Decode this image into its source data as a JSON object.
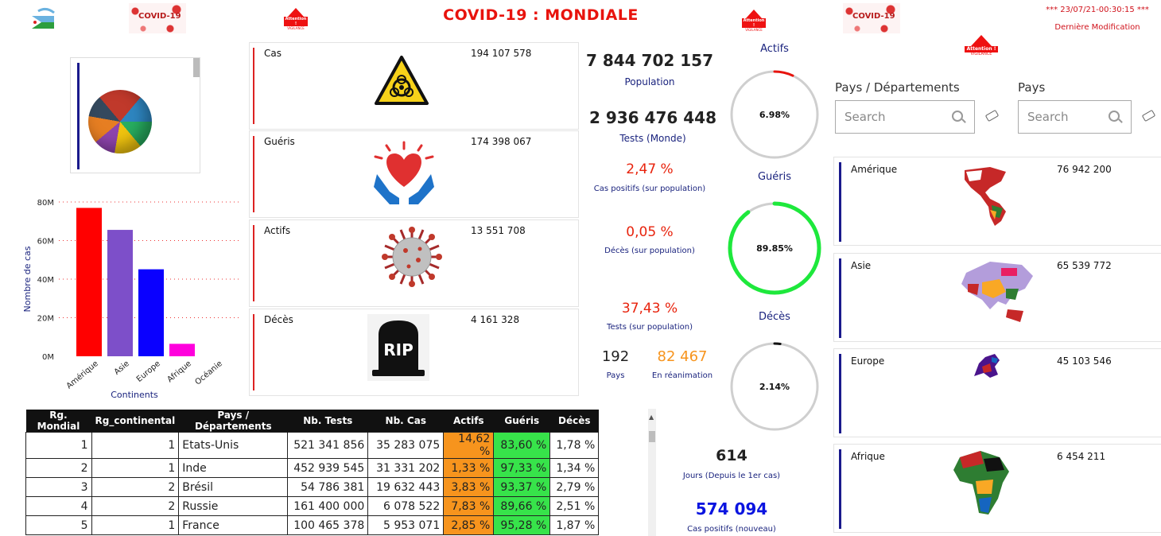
{
  "header": {
    "title": "COVID-19 : MONDIALE",
    "covid_banner_label": "COVID-19",
    "vigilance_label": "Attention !",
    "vigilance_sub": "VIGILANCE",
    "timestamp": "***  23/07/21-00:30:15  ***",
    "timestamp_label": "Dernière Modification"
  },
  "stats_cards": [
    {
      "label": "Cas",
      "value": "194 107 578",
      "icon": "biohazard-icon"
    },
    {
      "label": "Guéris",
      "value": "174 398 067",
      "icon": "heart-hands-icon"
    },
    {
      "label": "Actifs",
      "value": "13 551 708",
      "icon": "virus-icon"
    },
    {
      "label": "Décès",
      "value": "4 161 328",
      "icon": "tombstone-icon"
    }
  ],
  "summary": {
    "population_value": "7 844 702 157",
    "population_label": "Population",
    "tests_value": "2 936 476 448",
    "tests_label": "Tests (Monde)",
    "cas_positifs_pct": "2,47 %",
    "cas_positifs_label": "Cas positifs (sur population)",
    "deces_pct": "0,05 %",
    "deces_label": "Décès (sur population)",
    "tests_pct": "37,43 %",
    "tests_pct_label": "Tests (sur population)",
    "pays_value": "192",
    "pays_label": "Pays",
    "reanimation_value": "82 467",
    "reanimation_label": "En réanimation",
    "jours_value": "614",
    "jours_label": "Jours (Depuis le 1er cas)",
    "nouveaux_value": "574 094",
    "nouveaux_label": "Cas positifs (nouveau)"
  },
  "gauges": [
    {
      "title": "Actifs",
      "value_text": "6.98%",
      "fraction": 0.0698,
      "color": "#e8130d"
    },
    {
      "title": "Guéris",
      "value_text": "89.85%",
      "fraction": 0.8985,
      "color": "#1ee83c"
    },
    {
      "title": "Décès",
      "value_text": "2.14%",
      "fraction": 0.0214,
      "color": "#111111"
    }
  ],
  "slicers": {
    "pays_departements_title": "Pays / Départements",
    "pays_title": "Pays",
    "search_placeholder": "Search"
  },
  "continents": [
    {
      "label": "Amérique",
      "value": "76 942 200"
    },
    {
      "label": "Asie",
      "value": "65 539 772"
    },
    {
      "label": "Europe",
      "value": "45 103 546"
    },
    {
      "label": "Afrique",
      "value": "6 454 211"
    }
  ],
  "chart_data": {
    "type": "bar",
    "categories": [
      "Amérique",
      "Asie",
      "Europe",
      "Afrique",
      "Océanie"
    ],
    "values": [
      76942200,
      65539772,
      45103546,
      6454211,
      0
    ],
    "colors": [
      "#ff0000",
      "#7d4fc9",
      "#0a00ff",
      "#ff00dd",
      "#cccccc"
    ],
    "title": "",
    "xlabel": "Continents",
    "ylabel": "Nombre de cas",
    "ylim": [
      0,
      80000000
    ],
    "yticks": [
      "0M",
      "20M",
      "40M",
      "60M",
      "80M"
    ],
    "grid": true
  },
  "table": {
    "headers": [
      "Rg. Mondial",
      "Rg_continental",
      "Pays / Départements",
      "Nb. Tests",
      "Nb. Cas",
      "Actifs",
      "Guéris",
      "Décès"
    ],
    "rows": [
      [
        "1",
        "1",
        "Etats-Unis",
        "521 341 856",
        "35 283 075",
        "14,62 %",
        "83,60 %",
        "1,78 %"
      ],
      [
        "2",
        "1",
        "Inde",
        "452 939 545",
        "31 331 202",
        "1,33 %",
        "97,33 %",
        "1,34 %"
      ],
      [
        "3",
        "2",
        "Brésil",
        "54 786 381",
        "19 632 443",
        "3,83 %",
        "93,37 %",
        "2,79 %"
      ],
      [
        "4",
        "2",
        "Russie",
        "161 400 000",
        "6 078 522",
        "7,83 %",
        "89,66 %",
        "2,51 %"
      ],
      [
        "5",
        "1",
        "France",
        "100 465 378",
        "5 953 071",
        "2,85 %",
        "95,28 %",
        "1,87 %"
      ]
    ]
  }
}
